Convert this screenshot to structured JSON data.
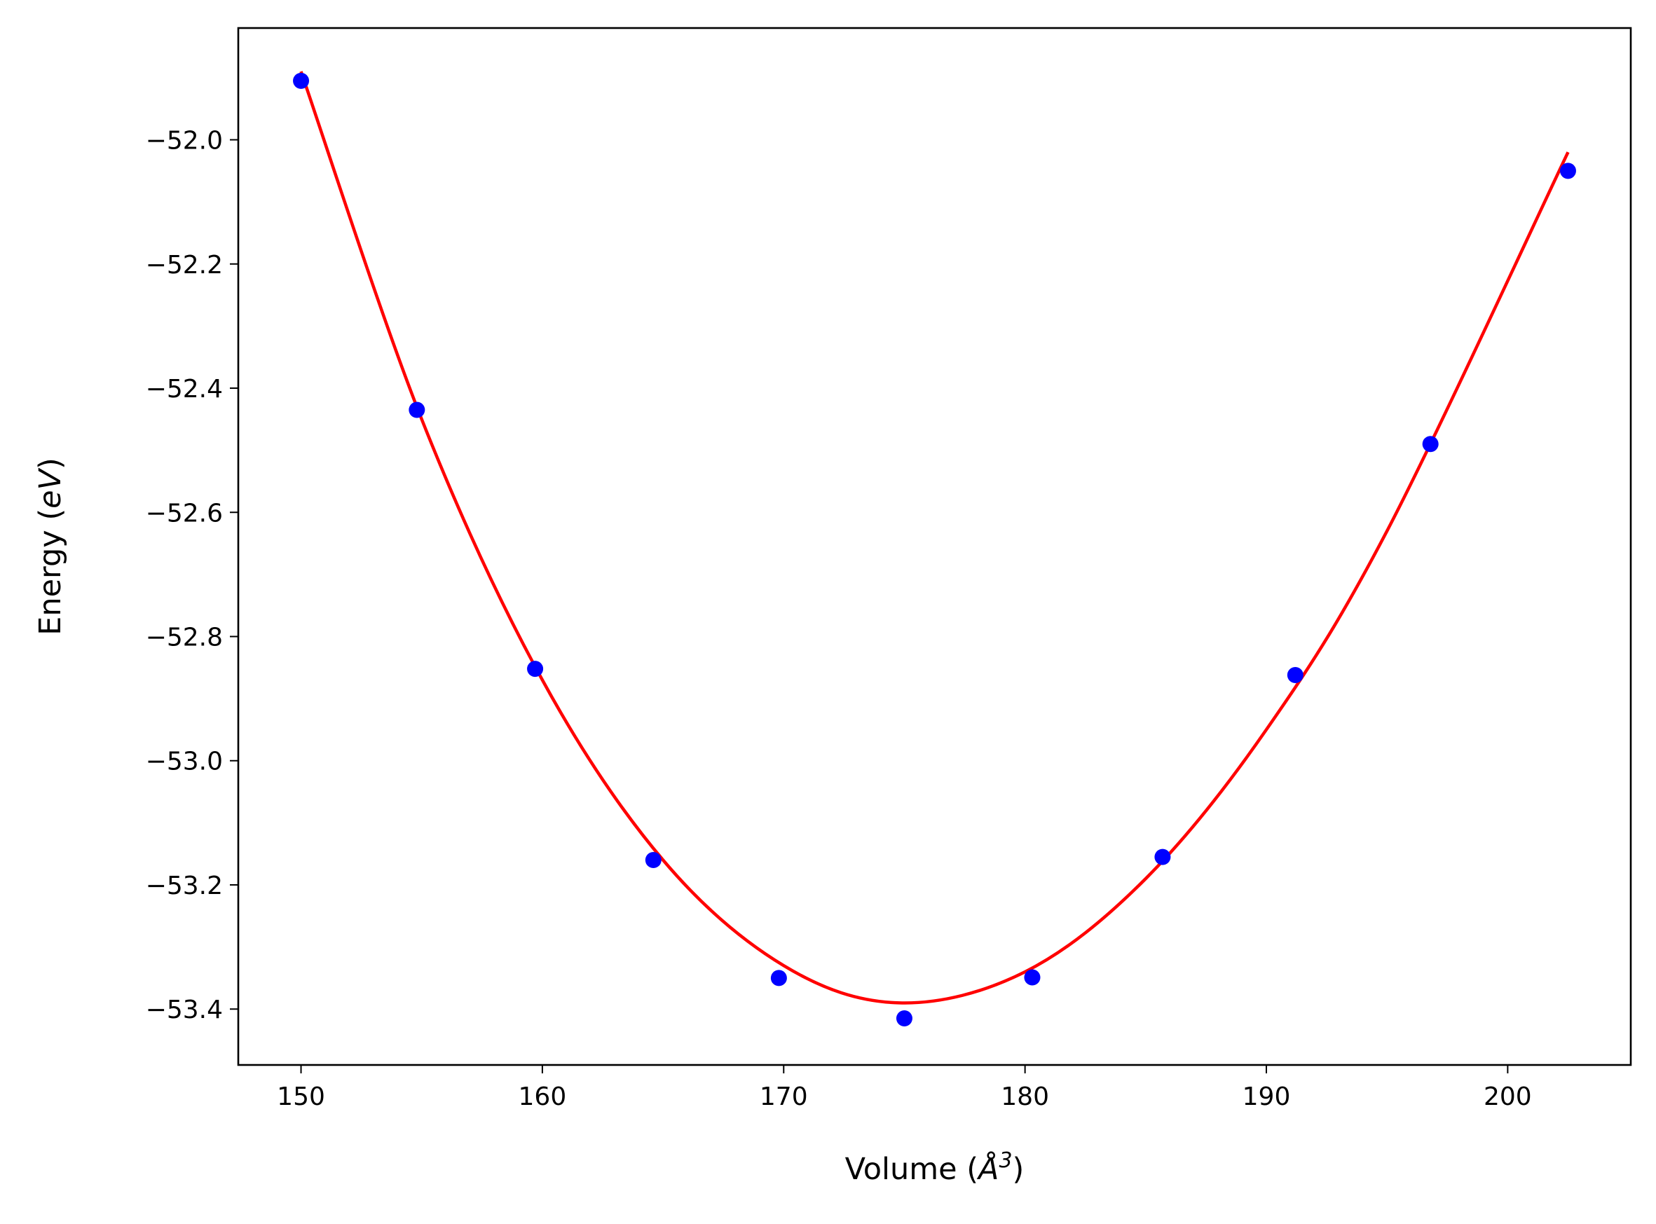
{
  "chart_data": {
    "type": "scatter",
    "title": "",
    "xlabel": "Volume (Å³)",
    "ylabel": "Energy (eV)",
    "xlabel_parts": {
      "prefix": "Volume (",
      "symbol": "Å",
      "exponent": "3",
      "suffix": ")"
    },
    "ylabel_parts": {
      "prefix": "Energy (",
      "unit": "eV",
      "suffix": ")"
    },
    "xlim": [
      147.4,
      205.1
    ],
    "ylim": [
      -53.49,
      -51.82
    ],
    "xticks": [
      150,
      160,
      170,
      180,
      190,
      200
    ],
    "yticks": [
      -52.0,
      -52.2,
      -52.4,
      -52.6,
      -52.8,
      -53.0,
      -53.2,
      -53.4
    ],
    "grid": false,
    "series": [
      {
        "kind": "points",
        "color": "#0000ff",
        "x": [
          150.0,
          154.8,
          159.7,
          164.6,
          169.8,
          175.0,
          180.3,
          185.7,
          191.2,
          196.8,
          202.5
        ],
        "y": [
          -51.905,
          -52.435,
          -52.852,
          -53.16,
          -53.35,
          -53.415,
          -53.349,
          -53.155,
          -52.862,
          -52.49,
          -52.05
        ]
      },
      {
        "kind": "fit-curve",
        "color": "#ff0000",
        "x": [
          150.0,
          155.0,
          160.0,
          165.0,
          170.0,
          174.8,
          180.0,
          185.0,
          190.0,
          195.0,
          202.5
        ],
        "y": [
          -51.89,
          -52.45,
          -52.87,
          -53.16,
          -53.33,
          -53.39,
          -53.34,
          -53.19,
          -52.95,
          -52.63,
          -52.02
        ]
      }
    ]
  }
}
